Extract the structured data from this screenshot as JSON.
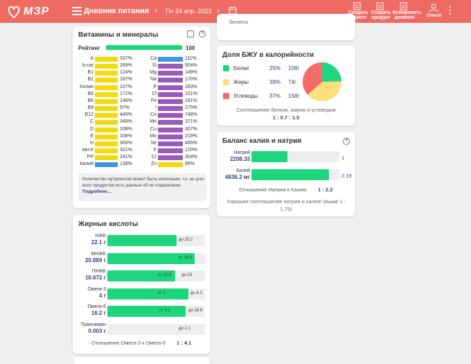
{
  "header": {
    "logo": "МЗР",
    "title": "Дневник питания",
    "date": "Пн 24 апр. 2023",
    "actions": [
      "Создать рецепт",
      "Создать продукт",
      "Копировать дневник"
    ],
    "user": "Ольга"
  },
  "vitamins": {
    "title": "Витамины и минералы",
    "rating_label": "Рейтинг",
    "rating": 100,
    "left": [
      {
        "name": "A",
        "value": "337%",
        "color": "#f4d90c"
      },
      {
        "name": "b-car",
        "value": "269%",
        "color": "#f4d90c"
      },
      {
        "name": "B1",
        "value": "124%",
        "color": "#f4d90c"
      },
      {
        "name": "B2",
        "value": "187%",
        "color": "#f4d90c"
      },
      {
        "name": "Холин",
        "value": "107%",
        "color": "#f4d90c"
      },
      {
        "name": "B5",
        "value": "172%",
        "color": "#f4d90c"
      },
      {
        "name": "B6",
        "value": "146%",
        "color": "#f4d90c"
      },
      {
        "name": "B9",
        "value": "97%",
        "color": "#f4d90c"
      },
      {
        "name": "B12",
        "value": "449%",
        "color": "#f4d90c"
      },
      {
        "name": "C",
        "value": "349%",
        "color": "#f4d90c"
      },
      {
        "name": "D",
        "value": "108%",
        "color": "#f4d90c"
      },
      {
        "name": "E",
        "value": "108%",
        "color": "#f4d90c"
      },
      {
        "name": "H",
        "value": "309%",
        "color": "#f4d90c"
      },
      {
        "name": "вит.К",
        "value": "321%",
        "color": "#f4d90c"
      },
      {
        "name": "PP",
        "value": "241%",
        "color": "#f4d90c"
      },
      {
        "name": "Калий",
        "value": "138%",
        "color": "#3f95e0"
      }
    ],
    "right": [
      {
        "name": "Ca",
        "value": "111%",
        "color": "#3f95e0"
      },
      {
        "name": "Si",
        "value": "904%",
        "color": "#9b59c0"
      },
      {
        "name": "Mg",
        "value": "149%",
        "color": "#9b59c0"
      },
      {
        "name": "Na",
        "value": "170%",
        "color": "#9b59c0"
      },
      {
        "name": "P",
        "value": "283%",
        "color": "#9b59c0"
      },
      {
        "name": "Cl",
        "value": "151%",
        "color": "#9b59c0"
      },
      {
        "name": "Fe",
        "value": "161%",
        "color": "#9b59c0"
      },
      {
        "name": "I",
        "value": "275%",
        "color": "#9b59c0"
      },
      {
        "name": "Co",
        "value": "748%",
        "color": "#9b59c0"
      },
      {
        "name": "Mn",
        "value": "371%",
        "color": "#9b59c0"
      },
      {
        "name": "Cu",
        "value": "307%",
        "color": "#9b59c0"
      },
      {
        "name": "Mo",
        "value": "219%",
        "color": "#9b59c0"
      },
      {
        "name": "Se",
        "value": "465%",
        "color": "#9b59c0"
      },
      {
        "name": "F",
        "value": "120%",
        "color": "#9b59c0"
      },
      {
        "name": "Cr",
        "value": "304%",
        "color": "#9b59c0"
      },
      {
        "name": "Zn",
        "value": "99%",
        "color": "#f4d90c"
      }
    ],
    "note": "Количество нутриентов может быть неполным, т.к. не для всех продуктов есть данные об их содержании.",
    "note_link": "Подробнее..."
  },
  "fatty_acids": {
    "title": "Жирные кислоты",
    "rows": [
      {
        "name": "НЖК",
        "amount": "22.1 г",
        "to": "до 25.2"
      },
      {
        "name": "МНЖК",
        "amount": "20.889 г",
        "from": "от 18.8"
      },
      {
        "name": "ПНЖК",
        "amount": "16.672 г",
        "from": "от 12.6",
        "to": "до 23"
      },
      {
        "name": "Омега-3",
        "amount": "4 г",
        "from": "от 1",
        "to": "до 4.2"
      },
      {
        "name": "Омега-6",
        "amount": "16.2 г",
        "from": "от 5.2",
        "to": "до 18.8"
      },
      {
        "name": "Трансжиры",
        "amount": "0.003 г",
        "to": "до 2.1"
      }
    ],
    "ratio_label": "Отношение Омега-3 к Омега-6",
    "ratio": "1 : 4.1"
  },
  "balance_top": {
    "text": "баланса"
  },
  "bju": {
    "title": "Доля БЖУ в калорийности",
    "rows": [
      {
        "name": "Белки",
        "percent": {
          "value": 25,
          "label": "25%"
        },
        "grams": "108г",
        "color": "#1fd67f"
      },
      {
        "name": "Жиры",
        "percent": {
          "value": 39,
          "label": "39%"
        },
        "grams": "74г",
        "color": "#fbe07d"
      },
      {
        "name": "Углеводы",
        "percent": {
          "value": 37,
          "label": "37%"
        },
        "grams": "158г",
        "color": "#f26c6c"
      }
    ],
    "ratio_label": "Соотношение белков, жиров и углеводов",
    "ratio": "1 : 0.7 : 1.5"
  },
  "potassium": {
    "title": "Баланс калия и натрия",
    "rows": [
      {
        "name": "Натрий",
        "amount": "2208.33",
        "value": "1"
      },
      {
        "name": "Калий",
        "amount": "4836.2 мг",
        "value": "2.19"
      }
    ],
    "ratio_label": "Отношение Натрия к Калию",
    "ratio": "1 : 2.2",
    "comment": "Хорошее соотношение натрия и калия! (выше 1 : 1,75)"
  }
}
